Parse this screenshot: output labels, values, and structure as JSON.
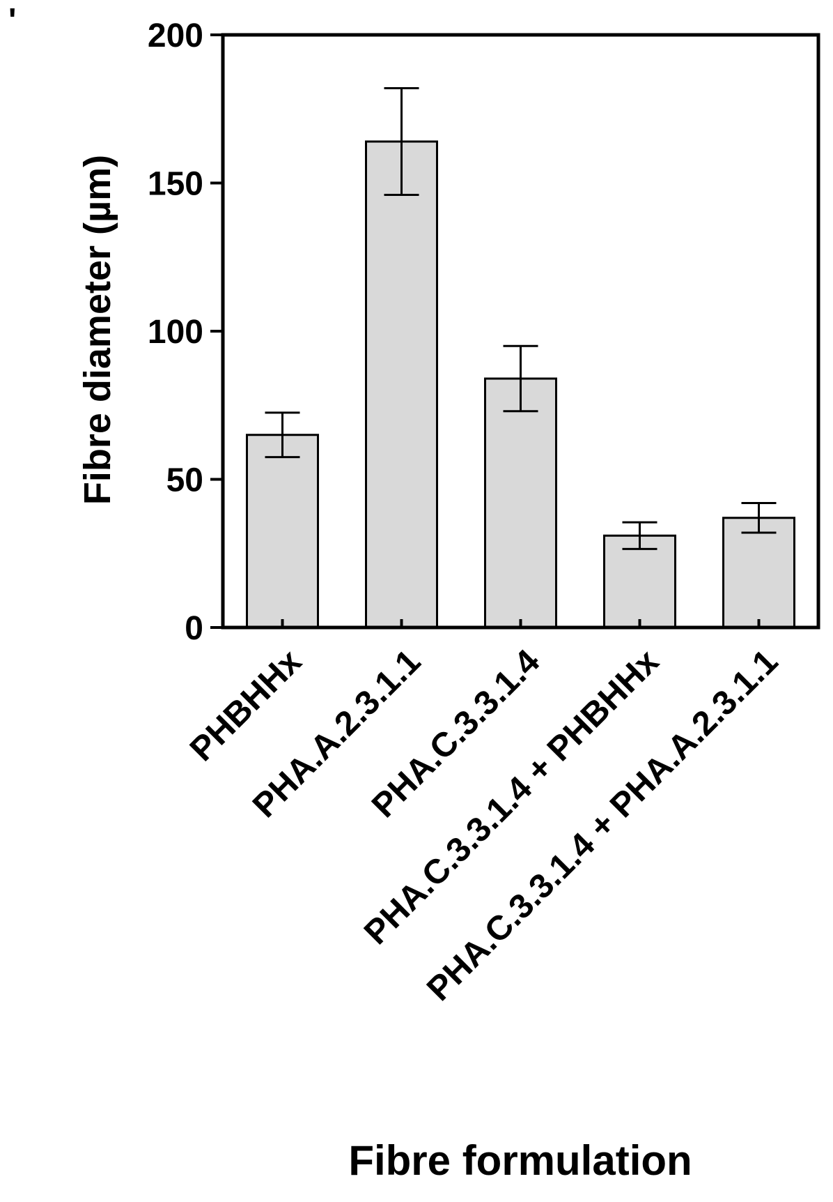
{
  "chart_data": {
    "type": "bar",
    "title": "",
    "corner_mark": "'",
    "xlabel": "Fibre formulation",
    "ylabel": "Fibre diameter (µm)",
    "ylim": [
      0,
      200
    ],
    "yticks": [
      0,
      50,
      100,
      150,
      200
    ],
    "grid": false,
    "categories": [
      "PHBHHx",
      "PHA.A.2.3.1.1",
      "PHA.C.3.3.1.4",
      "PHA.C.3.3.1.4 + PHBHHx",
      "PHA.C.3.3.1.4 + PHA.A.2.3.1.1"
    ],
    "values": [
      65,
      164,
      84,
      31,
      37
    ],
    "error": [
      7.5,
      18,
      11,
      4.5,
      5
    ],
    "colors": {
      "bar_fill": "#d9d9d9",
      "bar_stroke": "#000000",
      "axis": "#000000"
    }
  }
}
